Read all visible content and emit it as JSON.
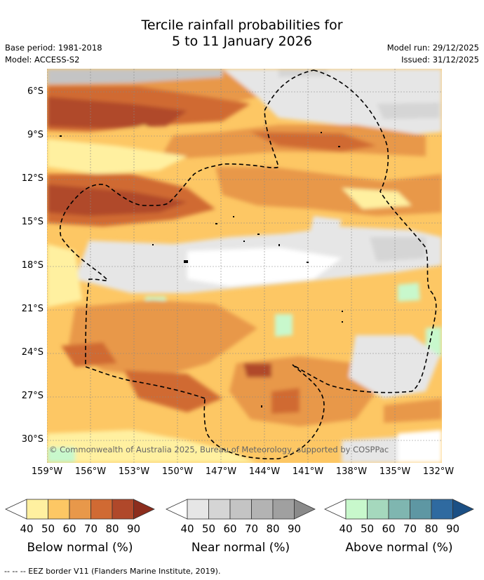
{
  "title": {
    "line1": "Tercile rainfall probabilities for",
    "line2": "5 to 11 January 2026"
  },
  "meta": {
    "base_period": "Base period: 1981-2018",
    "model": "Model: ACCESS-S2",
    "model_run": "Model run: 29/12/2025",
    "issued": "Issued: 31/12/2025"
  },
  "axes": {
    "lat_labels": [
      "6°S",
      "9°S",
      "12°S",
      "15°S",
      "18°S",
      "21°S",
      "24°S",
      "27°S",
      "30°S"
    ],
    "lon_labels": [
      "159°W",
      "156°W",
      "153°W",
      "150°W",
      "147°W",
      "144°W",
      "141°W",
      "138°W",
      "135°W",
      "132°W"
    ]
  },
  "copyright": "© Commonwealth of Australia 2025, Bureau of Meteorology, supported by COSPPac",
  "legends": [
    {
      "title": "Below normal (%)",
      "ticks": [
        "40",
        "50",
        "60",
        "70",
        "80",
        "90"
      ],
      "colors": [
        "#fff0a0",
        "#fdc764",
        "#e8984a",
        "#d06a33",
        "#b0482a",
        "#8c2d1d"
      ]
    },
    {
      "title": "Near normal (%)",
      "ticks": [
        "40",
        "50",
        "60",
        "70",
        "80",
        "90"
      ],
      "colors": [
        "#e6e6e6",
        "#d5d5d5",
        "#c4c4c4",
        "#b3b3b3",
        "#a0a0a0",
        "#8a8a8a"
      ]
    },
    {
      "title": "Above normal (%)",
      "ticks": [
        "40",
        "50",
        "60",
        "70",
        "80",
        "90"
      ],
      "colors": [
        "#c8f8cc",
        "#a5d8bd",
        "#7fb6b0",
        "#5e97a3",
        "#2f6aa0",
        "#1b4f84"
      ]
    }
  ],
  "footnote": "--  --  -- EEZ border V11 (Flanders Marine Institute, 2019)."
}
